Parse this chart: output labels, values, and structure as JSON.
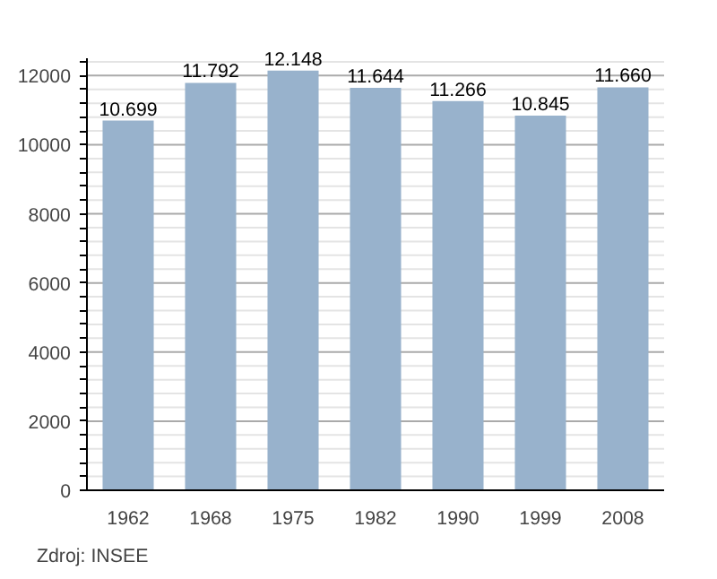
{
  "chart_data": {
    "type": "bar",
    "categories": [
      "1962",
      "1968",
      "1975",
      "1982",
      "1990",
      "1999",
      "2008"
    ],
    "values": [
      10699,
      11792,
      12148,
      11644,
      11266,
      10845,
      11660
    ],
    "value_labels": [
      "10.699",
      "11.792",
      "12.148",
      "11.644",
      "11.266",
      "10.845",
      "11.660"
    ],
    "color": "#98b2cc",
    "ylim": [
      0,
      12500
    ],
    "yticks": [
      0,
      {
        "value": 400,
        "label": null
      },
      {
        "value": 800,
        "label": null
      },
      {
        "value": 1200,
        "label": null
      },
      {
        "value": 1600,
        "label": null
      },
      2000,
      {
        "value": 2400,
        "label": null
      },
      {
        "value": 2800,
        "label": null
      },
      {
        "value": 3200,
        "label": null
      },
      {
        "value": 3600,
        "label": null
      },
      4000,
      {
        "value": 4400,
        "label": null
      },
      {
        "value": 4800,
        "label": null
      },
      {
        "value": 5200,
        "label": null
      },
      {
        "value": 5600,
        "label": null
      },
      6000,
      {
        "value": 6400,
        "label": null
      },
      {
        "value": 6800,
        "label": null
      },
      {
        "value": 7200,
        "label": null
      },
      {
        "value": 7600,
        "label": null
      },
      8000,
      {
        "value": 8400,
        "label": null
      },
      {
        "value": 8800,
        "label": null
      },
      {
        "value": 9200,
        "label": null
      },
      {
        "value": 9600,
        "label": null
      },
      10000,
      {
        "value": 10400,
        "label": null
      },
      {
        "value": 10800,
        "label": null
      },
      {
        "value": 11200,
        "label": null
      },
      {
        "value": 11600,
        "label": null
      },
      12000,
      {
        "value": 12400,
        "label": null
      }
    ],
    "grid": "y",
    "annotations": [
      "Zdroj: INSEE"
    ]
  }
}
